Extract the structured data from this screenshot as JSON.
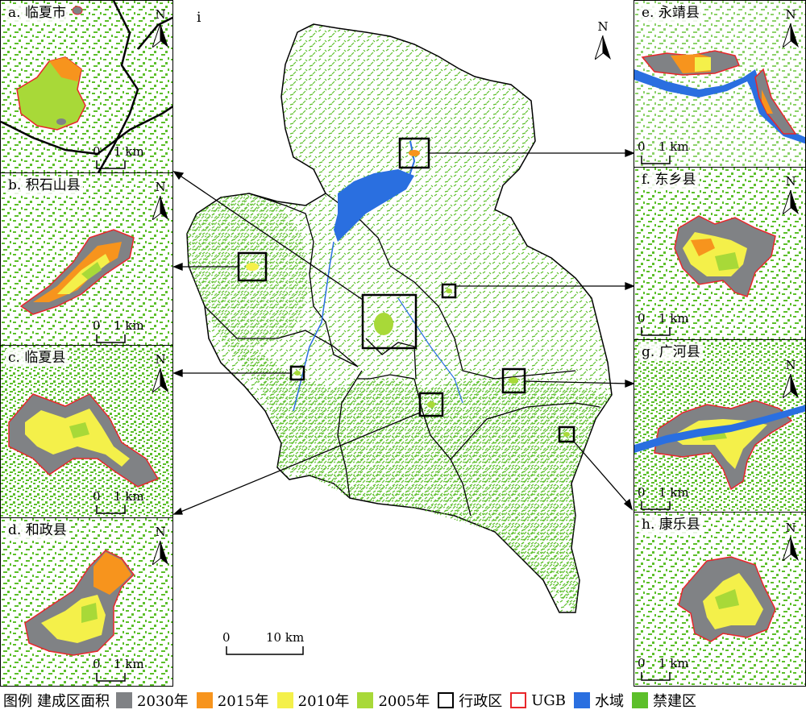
{
  "colors": {
    "y2030": "#808285",
    "y2015": "#f7941d",
    "y2010": "#f4f04a",
    "y2005": "#a8d938",
    "admin": "#000000",
    "ugb": "#e8262a",
    "water": "#2a6fe0",
    "forbidden": "#5cbf2a"
  },
  "main": {
    "label": "i",
    "scale_zero": "0",
    "scale_value": "10 km",
    "north": "N"
  },
  "panels": {
    "a": {
      "title": "a. 临夏市",
      "north": "N",
      "scale_zero": "0",
      "scale_value": "1 km"
    },
    "b": {
      "title": "b. 积石山县",
      "north": "N",
      "scale_zero": "0",
      "scale_value": "1 km"
    },
    "c": {
      "title": "c. 临夏县",
      "north": "N",
      "scale_zero": "0",
      "scale_value": "1 km"
    },
    "d": {
      "title": "d. 和政县",
      "north": "N",
      "scale_zero": "0",
      "scale_value": "1 km"
    },
    "e": {
      "title": "e. 永靖县",
      "north": "N",
      "scale_zero": "0",
      "scale_value": "1 km"
    },
    "f": {
      "title": "f. 东乡县",
      "north": "N",
      "scale_zero": "0",
      "scale_value": "1 km"
    },
    "g": {
      "title": "g. 广河县",
      "north": "N",
      "scale_zero": "0",
      "scale_value": "1 km"
    },
    "h": {
      "title": "h. 康乐县",
      "north": "N",
      "scale_zero": "0",
      "scale_value": "1 km"
    }
  },
  "legend": {
    "title": "图例",
    "subtitle": "建成区面积",
    "items": [
      {
        "key": "y2030",
        "label": "2030年"
      },
      {
        "key": "y2015",
        "label": "2015年"
      },
      {
        "key": "y2010",
        "label": "2010年"
      },
      {
        "key": "y2005",
        "label": "2005年"
      },
      {
        "key": "admin",
        "label": "行政区"
      },
      {
        "key": "ugb",
        "label": "UGB"
      },
      {
        "key": "water",
        "label": "水域"
      },
      {
        "key": "forbidden",
        "label": "禁建区"
      }
    ]
  }
}
